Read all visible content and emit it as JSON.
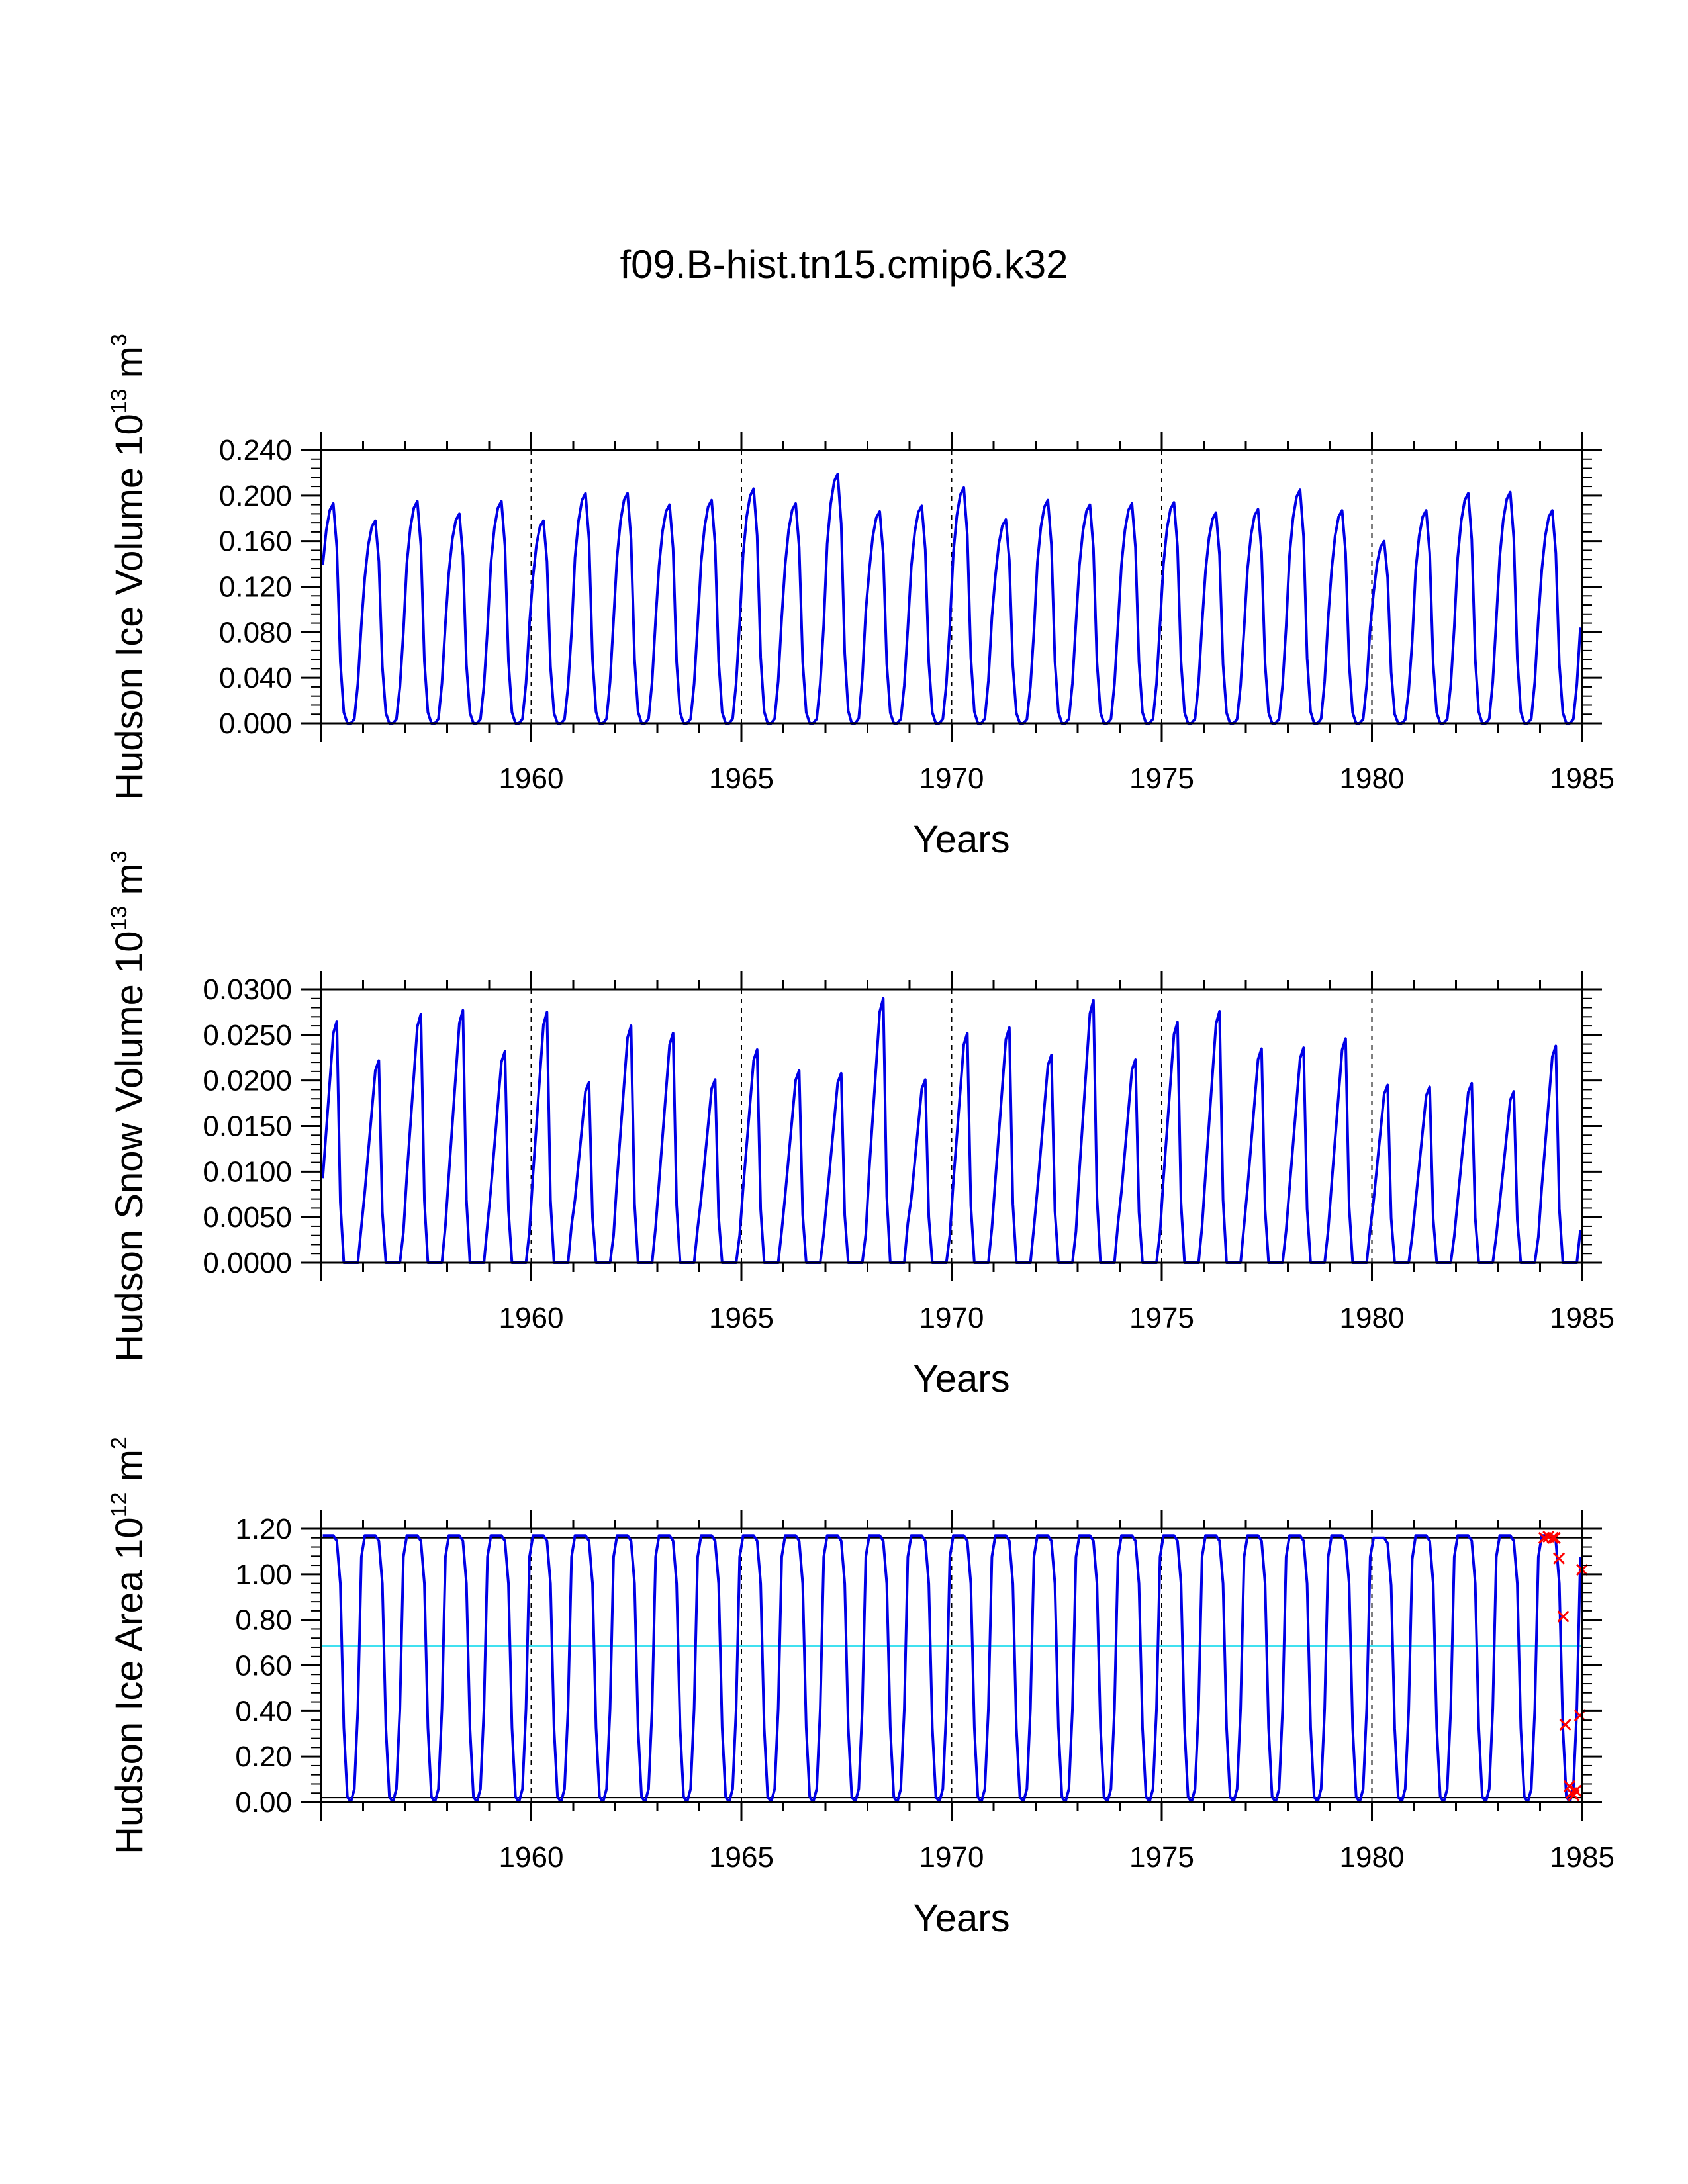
{
  "figure_title": "f09.B-hist.tn15.cmip6.k32",
  "chart_data": [
    {
      "type": "line",
      "name": "ice-volume",
      "ylabel": {
        "main": "Hudson Ice Volume 10",
        "exp": "13",
        "unit": " m",
        "unit_exp": "3"
      },
      "xlabel": "Years",
      "xlim": [
        1955,
        1985
      ],
      "ylim": [
        0,
        0.24
      ],
      "xticks": [
        1960,
        1965,
        1970,
        1975,
        1980,
        1985
      ],
      "xtick_labels": [
        "1960",
        "1965",
        "1970",
        "1975",
        "1980",
        "1985"
      ],
      "yticks": [
        0,
        0.04,
        0.08,
        0.12,
        0.16,
        0.2,
        0.24
      ],
      "ytick_labels": [
        "0.000",
        "0.040",
        "0.080",
        "0.120",
        "0.160",
        "0.200",
        "0.240"
      ],
      "decade_gridlines": [
        1960,
        1965,
        1970,
        1975,
        1980
      ],
      "series_color": "#0000e6",
      "annual_peaks": [
        0.193,
        0.178,
        0.195,
        0.184,
        0.195,
        0.178,
        0.202,
        0.202,
        0.192,
        0.196,
        0.206,
        0.193,
        0.219,
        0.186,
        0.191,
        0.207,
        0.179,
        0.196,
        0.192,
        0.193,
        0.194,
        0.185,
        0.188,
        0.205,
        0.187,
        0.16,
        0.187,
        0.202,
        0.203,
        0.187
      ]
    },
    {
      "type": "line",
      "name": "snow-volume",
      "ylabel": {
        "main": "Hudson Snow Volume 10",
        "exp": "13",
        "unit": " m",
        "unit_exp": "3"
      },
      "xlabel": "Years",
      "xlim": [
        1955,
        1985
      ],
      "ylim": [
        0,
        0.03
      ],
      "xticks": [
        1960,
        1965,
        1970,
        1975,
        1980,
        1985
      ],
      "xtick_labels": [
        "1960",
        "1965",
        "1970",
        "1975",
        "1980",
        "1985"
      ],
      "yticks": [
        0,
        0.005,
        0.01,
        0.015,
        0.02,
        0.025,
        0.03
      ],
      "ytick_labels": [
        "0.0000",
        "0.0050",
        "0.0100",
        "0.0150",
        "0.0200",
        "0.0250",
        "0.0300"
      ],
      "decade_gridlines": [
        1960,
        1965,
        1970,
        1975,
        1980
      ],
      "series_color": "#0000e6",
      "annual_peaks": [
        0.0265,
        0.0222,
        0.0273,
        0.0277,
        0.0232,
        0.0275,
        0.0198,
        0.026,
        0.0252,
        0.0201,
        0.0234,
        0.0211,
        0.0208,
        0.029,
        0.0201,
        0.0252,
        0.0258,
        0.0228,
        0.0288,
        0.0223,
        0.0264,
        0.0276,
        0.0235,
        0.0236,
        0.0246,
        0.0195,
        0.0193,
        0.0197,
        0.0188,
        0.0238
      ]
    },
    {
      "type": "line",
      "name": "ice-area",
      "ylabel": {
        "main": "Hudson Ice Area 10",
        "exp": "12",
        "unit": " m",
        "unit_exp": "2"
      },
      "xlabel": "Years",
      "xlim": [
        1955,
        1985
      ],
      "ylim": [
        0,
        1.2
      ],
      "xticks": [
        1960,
        1965,
        1970,
        1975,
        1980,
        1985
      ],
      "xtick_labels": [
        "1960",
        "1965",
        "1970",
        "1975",
        "1980",
        "1985"
      ],
      "yticks": [
        0,
        0.2,
        0.4,
        0.6,
        0.8,
        1.0,
        1.2
      ],
      "ytick_labels": [
        "0.00",
        "0.20",
        "0.40",
        "0.60",
        "0.80",
        "1.00",
        "1.20"
      ],
      "decade_gridlines": [
        1960,
        1965,
        1970,
        1975,
        1980
      ],
      "series_color": "#0000e6",
      "annual_peaks": [
        1.17,
        1.17,
        1.17,
        1.17,
        1.17,
        1.17,
        1.17,
        1.17,
        1.17,
        1.17,
        1.17,
        1.17,
        1.17,
        1.17,
        1.17,
        1.17,
        1.17,
        1.17,
        1.17,
        1.17,
        1.17,
        1.17,
        1.17,
        1.17,
        1.17,
        1.16,
        1.17,
        1.17,
        1.17,
        1.17
      ],
      "upper_ref_line": 1.16,
      "lower_ref_line": 0.02,
      "mean_line": 0.685,
      "mean_line_color": "#40e0f0",
      "ref_line_color": "#000000",
      "markers": {
        "color": "#ff0000",
        "points": [
          [
            1984.1,
            1.16
          ],
          [
            1984.2,
            1.165
          ],
          [
            1984.3,
            1.16
          ],
          [
            1984.35,
            1.16
          ],
          [
            1984.45,
            1.07
          ],
          [
            1984.55,
            0.815
          ],
          [
            1984.6,
            0.34
          ],
          [
            1984.7,
            0.07
          ],
          [
            1984.75,
            0.04
          ],
          [
            1984.8,
            0.03
          ],
          [
            1984.85,
            0.05
          ],
          [
            1984.95,
            0.38
          ],
          [
            1985.0,
            1.02
          ]
        ]
      }
    }
  ]
}
